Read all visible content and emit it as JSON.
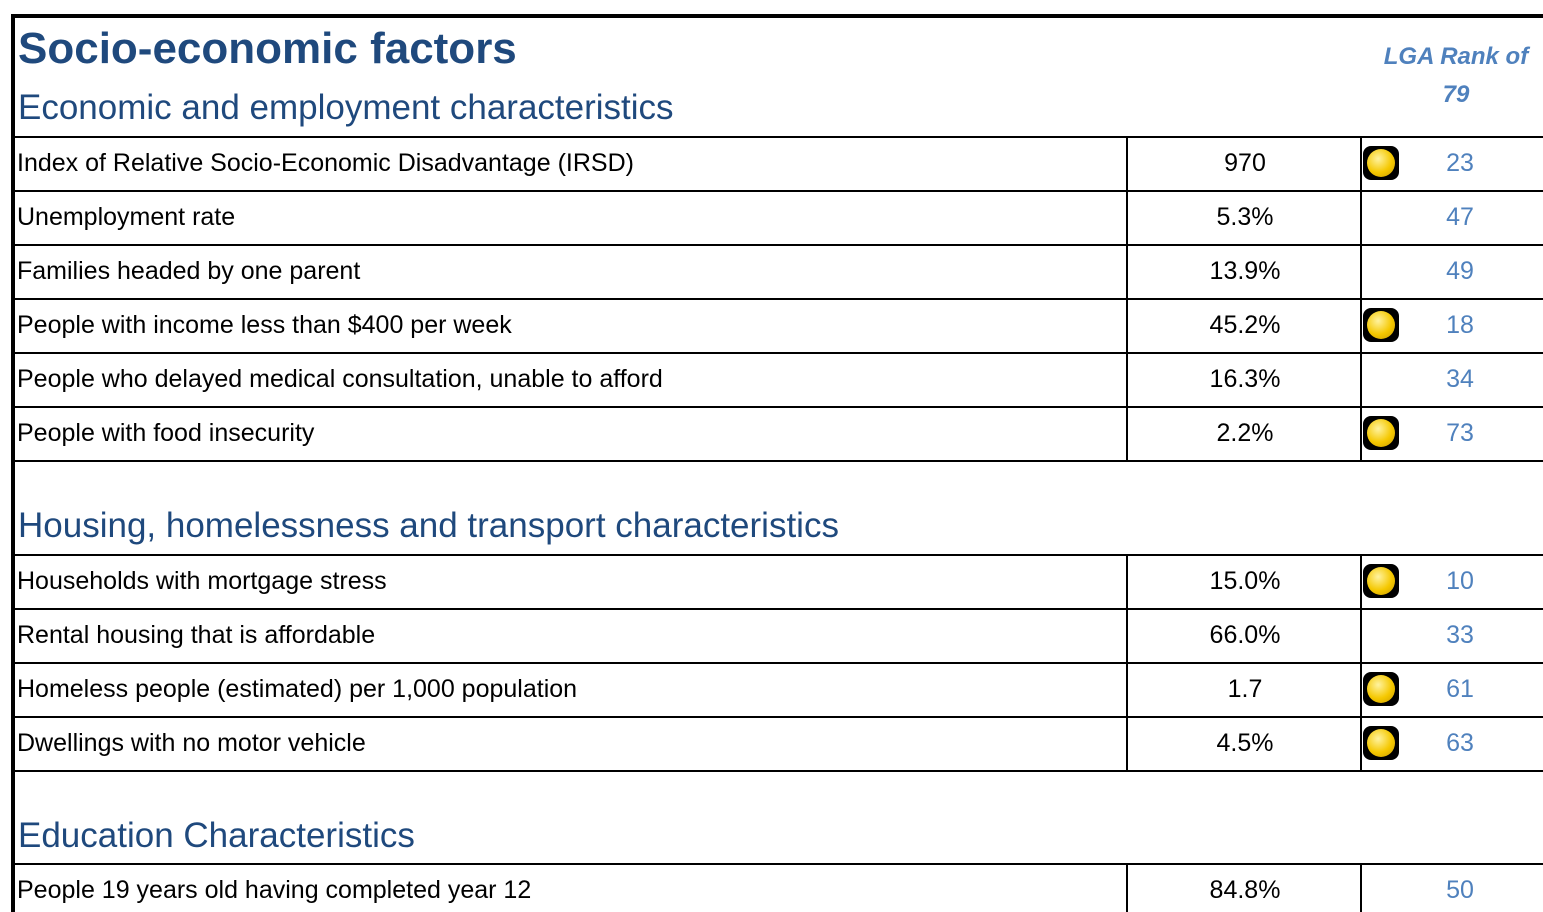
{
  "title": "Socio-economic factors",
  "rank_header": "LGA Rank of 79",
  "sections": [
    {
      "heading": "Economic and employment characteristics",
      "rows": [
        {
          "label": "Index of Relative Socio-Economic Disadvantage (IRSD)",
          "value": "970",
          "flag": true,
          "rank": 23
        },
        {
          "label": "Unemployment rate",
          "value": "5.3%",
          "flag": false,
          "rank": 47
        },
        {
          "label": "Families headed by one parent",
          "value": "13.9%",
          "flag": false,
          "rank": 49
        },
        {
          "label": "People with income less than $400 per week",
          "value": "45.2%",
          "flag": true,
          "rank": 18
        },
        {
          "label": "People who delayed medical consultation, unable to afford",
          "value": "16.3%",
          "flag": false,
          "rank": 34
        },
        {
          "label": "People with food insecurity",
          "value": "2.2%",
          "flag": true,
          "rank": 73
        }
      ]
    },
    {
      "heading": "Housing, homelessness and transport characteristics",
      "rows": [
        {
          "label": "Households with mortgage stress",
          "value": "15.0%",
          "flag": true,
          "rank": 10
        },
        {
          "label": "Rental housing that is affordable",
          "value": "66.0%",
          "flag": false,
          "rank": 33
        },
        {
          "label": "Homeless people (estimated) per 1,000 population",
          "value": "1.7",
          "flag": true,
          "rank": 61
        },
        {
          "label": "Dwellings with no motor vehicle",
          "value": "4.5%",
          "flag": true,
          "rank": 63
        }
      ]
    },
    {
      "heading": "Education Characteristics",
      "rows": [
        {
          "label": "People 19 years old having completed year 12",
          "value": "84.8%",
          "flag": false,
          "rank": 50
        }
      ]
    }
  ]
}
